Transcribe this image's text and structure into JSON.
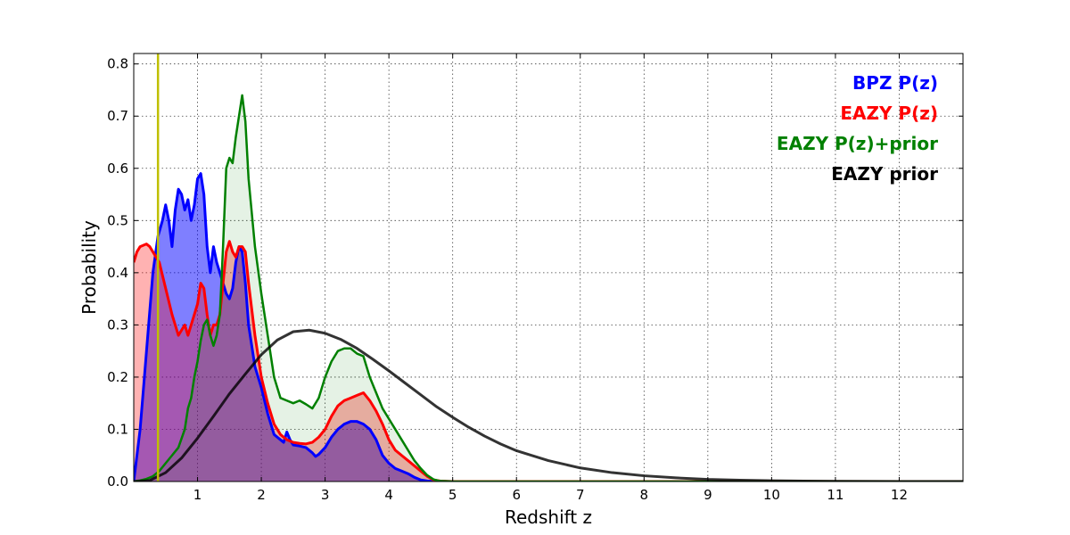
{
  "chart_data": {
    "type": "area",
    "title": "",
    "xlabel": "Redshift z",
    "ylabel": "Probability",
    "xlim": [
      0,
      13
    ],
    "ylim": [
      0,
      0.82
    ],
    "x_ticks": [
      1,
      2,
      3,
      4,
      5,
      6,
      7,
      8,
      9,
      10,
      11,
      12
    ],
    "y_ticks": [
      0.0,
      0.1,
      0.2,
      0.3,
      0.4,
      0.5,
      0.6,
      0.7,
      0.8
    ],
    "y_tick_labels": [
      "0.0",
      "0.1",
      "0.2",
      "0.3",
      "0.4",
      "0.5",
      "0.6",
      "0.7",
      "0.8"
    ],
    "grid": true,
    "legend_position": "top-right",
    "vertical_marker": {
      "x": 0.38,
      "color": "#bfbf00"
    },
    "series": [
      {
        "name": "BPZ P(z)",
        "color": "#0000ff",
        "fill": "#0000ff",
        "fill_opacity": 0.5,
        "line_width": 3,
        "points": [
          [
            0,
            0
          ],
          [
            0.1,
            0.1
          ],
          [
            0.2,
            0.25
          ],
          [
            0.3,
            0.4
          ],
          [
            0.38,
            0.47
          ],
          [
            0.45,
            0.5
          ],
          [
            0.5,
            0.53
          ],
          [
            0.55,
            0.5
          ],
          [
            0.6,
            0.45
          ],
          [
            0.65,
            0.52
          ],
          [
            0.7,
            0.56
          ],
          [
            0.75,
            0.55
          ],
          [
            0.8,
            0.52
          ],
          [
            0.85,
            0.54
          ],
          [
            0.9,
            0.5
          ],
          [
            0.95,
            0.53
          ],
          [
            1.0,
            0.58
          ],
          [
            1.05,
            0.59
          ],
          [
            1.1,
            0.55
          ],
          [
            1.15,
            0.45
          ],
          [
            1.2,
            0.4
          ],
          [
            1.25,
            0.45
          ],
          [
            1.3,
            0.42
          ],
          [
            1.35,
            0.4
          ],
          [
            1.4,
            0.38
          ],
          [
            1.45,
            0.36
          ],
          [
            1.5,
            0.35
          ],
          [
            1.55,
            0.37
          ],
          [
            1.6,
            0.42
          ],
          [
            1.65,
            0.45
          ],
          [
            1.7,
            0.44
          ],
          [
            1.75,
            0.38
          ],
          [
            1.8,
            0.3
          ],
          [
            1.9,
            0.22
          ],
          [
            2.0,
            0.18
          ],
          [
            2.1,
            0.13
          ],
          [
            2.2,
            0.09
          ],
          [
            2.3,
            0.08
          ],
          [
            2.35,
            0.075
          ],
          [
            2.4,
            0.095
          ],
          [
            2.45,
            0.08
          ],
          [
            2.5,
            0.07
          ],
          [
            2.6,
            0.068
          ],
          [
            2.7,
            0.065
          ],
          [
            2.8,
            0.055
          ],
          [
            2.85,
            0.048
          ],
          [
            2.9,
            0.052
          ],
          [
            3.0,
            0.065
          ],
          [
            3.1,
            0.085
          ],
          [
            3.2,
            0.1
          ],
          [
            3.3,
            0.11
          ],
          [
            3.4,
            0.115
          ],
          [
            3.5,
            0.115
          ],
          [
            3.6,
            0.11
          ],
          [
            3.7,
            0.1
          ],
          [
            3.8,
            0.08
          ],
          [
            3.9,
            0.05
          ],
          [
            4.0,
            0.035
          ],
          [
            4.1,
            0.025
          ],
          [
            4.2,
            0.02
          ],
          [
            4.3,
            0.015
          ],
          [
            4.4,
            0.008
          ],
          [
            4.5,
            0.003
          ],
          [
            4.6,
            0.001
          ],
          [
            5.0,
            0
          ],
          [
            13,
            0
          ]
        ]
      },
      {
        "name": "EAZY P(z)",
        "color": "#ff0000",
        "fill": "#ff0000",
        "fill_opacity": 0.3,
        "line_width": 3,
        "points": [
          [
            0,
            0.42
          ],
          [
            0.05,
            0.44
          ],
          [
            0.1,
            0.45
          ],
          [
            0.2,
            0.455
          ],
          [
            0.25,
            0.45
          ],
          [
            0.3,
            0.44
          ],
          [
            0.4,
            0.42
          ],
          [
            0.5,
            0.37
          ],
          [
            0.6,
            0.32
          ],
          [
            0.7,
            0.28
          ],
          [
            0.8,
            0.3
          ],
          [
            0.85,
            0.28
          ],
          [
            0.9,
            0.3
          ],
          [
            1.0,
            0.34
          ],
          [
            1.05,
            0.38
          ],
          [
            1.1,
            0.37
          ],
          [
            1.15,
            0.32
          ],
          [
            1.2,
            0.28
          ],
          [
            1.25,
            0.3
          ],
          [
            1.3,
            0.3
          ],
          [
            1.35,
            0.32
          ],
          [
            1.4,
            0.38
          ],
          [
            1.45,
            0.44
          ],
          [
            1.5,
            0.46
          ],
          [
            1.55,
            0.44
          ],
          [
            1.6,
            0.43
          ],
          [
            1.65,
            0.45
          ],
          [
            1.7,
            0.45
          ],
          [
            1.75,
            0.44
          ],
          [
            1.8,
            0.38
          ],
          [
            1.9,
            0.28
          ],
          [
            2.0,
            0.2
          ],
          [
            2.1,
            0.15
          ],
          [
            2.2,
            0.11
          ],
          [
            2.3,
            0.09
          ],
          [
            2.4,
            0.08
          ],
          [
            2.5,
            0.075
          ],
          [
            2.6,
            0.073
          ],
          [
            2.7,
            0.072
          ],
          [
            2.8,
            0.075
          ],
          [
            2.9,
            0.085
          ],
          [
            3.0,
            0.1
          ],
          [
            3.1,
            0.125
          ],
          [
            3.2,
            0.145
          ],
          [
            3.3,
            0.155
          ],
          [
            3.4,
            0.16
          ],
          [
            3.5,
            0.165
          ],
          [
            3.6,
            0.17
          ],
          [
            3.7,
            0.155
          ],
          [
            3.8,
            0.135
          ],
          [
            3.9,
            0.11
          ],
          [
            4.0,
            0.08
          ],
          [
            4.1,
            0.06
          ],
          [
            4.2,
            0.05
          ],
          [
            4.3,
            0.04
          ],
          [
            4.4,
            0.03
          ],
          [
            4.5,
            0.02
          ],
          [
            4.6,
            0.01
          ],
          [
            4.7,
            0.003
          ],
          [
            4.8,
            0.001
          ],
          [
            5.0,
            0
          ],
          [
            13,
            0
          ]
        ]
      },
      {
        "name": "EAZY P(z)+prior",
        "color": "#008000",
        "fill": "#008000",
        "fill_opacity": 0.1,
        "line_width": 2.5,
        "points": [
          [
            0,
            0
          ],
          [
            0.1,
            0.002
          ],
          [
            0.2,
            0.005
          ],
          [
            0.3,
            0.01
          ],
          [
            0.4,
            0.02
          ],
          [
            0.5,
            0.035
          ],
          [
            0.6,
            0.05
          ],
          [
            0.7,
            0.065
          ],
          [
            0.8,
            0.1
          ],
          [
            0.85,
            0.14
          ],
          [
            0.9,
            0.16
          ],
          [
            0.95,
            0.2
          ],
          [
            1.0,
            0.23
          ],
          [
            1.05,
            0.27
          ],
          [
            1.1,
            0.3
          ],
          [
            1.15,
            0.31
          ],
          [
            1.2,
            0.28
          ],
          [
            1.25,
            0.26
          ],
          [
            1.3,
            0.28
          ],
          [
            1.35,
            0.32
          ],
          [
            1.4,
            0.45
          ],
          [
            1.45,
            0.6
          ],
          [
            1.5,
            0.62
          ],
          [
            1.55,
            0.61
          ],
          [
            1.6,
            0.66
          ],
          [
            1.65,
            0.7
          ],
          [
            1.7,
            0.74
          ],
          [
            1.75,
            0.69
          ],
          [
            1.8,
            0.58
          ],
          [
            1.9,
            0.45
          ],
          [
            2.0,
            0.36
          ],
          [
            2.1,
            0.28
          ],
          [
            2.2,
            0.2
          ],
          [
            2.3,
            0.16
          ],
          [
            2.4,
            0.155
          ],
          [
            2.5,
            0.15
          ],
          [
            2.6,
            0.155
          ],
          [
            2.7,
            0.148
          ],
          [
            2.8,
            0.14
          ],
          [
            2.9,
            0.16
          ],
          [
            3.0,
            0.2
          ],
          [
            3.1,
            0.23
          ],
          [
            3.2,
            0.25
          ],
          [
            3.3,
            0.255
          ],
          [
            3.4,
            0.255
          ],
          [
            3.5,
            0.245
          ],
          [
            3.6,
            0.24
          ],
          [
            3.7,
            0.2
          ],
          [
            3.8,
            0.17
          ],
          [
            3.9,
            0.14
          ],
          [
            4.0,
            0.12
          ],
          [
            4.1,
            0.1
          ],
          [
            4.2,
            0.08
          ],
          [
            4.3,
            0.06
          ],
          [
            4.4,
            0.04
          ],
          [
            4.5,
            0.025
          ],
          [
            4.6,
            0.012
          ],
          [
            4.7,
            0.004
          ],
          [
            4.8,
            0.001
          ],
          [
            5.0,
            0
          ],
          [
            13,
            0
          ]
        ]
      },
      {
        "name": "EAZY prior",
        "color": "#000000",
        "fill": "none",
        "line_width": 3,
        "line_opacity": 0.8,
        "points": [
          [
            0,
            0
          ],
          [
            0.25,
            0.002
          ],
          [
            0.5,
            0.017
          ],
          [
            0.75,
            0.045
          ],
          [
            1.0,
            0.083
          ],
          [
            1.25,
            0.125
          ],
          [
            1.5,
            0.168
          ],
          [
            1.75,
            0.206
          ],
          [
            2.0,
            0.243
          ],
          [
            2.25,
            0.271
          ],
          [
            2.5,
            0.287
          ],
          [
            2.75,
            0.29
          ],
          [
            3.0,
            0.284
          ],
          [
            3.25,
            0.272
          ],
          [
            3.5,
            0.255
          ],
          [
            3.75,
            0.234
          ],
          [
            4.0,
            0.212
          ],
          [
            4.25,
            0.189
          ],
          [
            4.5,
            0.166
          ],
          [
            4.75,
            0.143
          ],
          [
            5.0,
            0.123
          ],
          [
            5.25,
            0.104
          ],
          [
            5.5,
            0.087
          ],
          [
            5.75,
            0.072
          ],
          [
            6.0,
            0.059
          ],
          [
            6.5,
            0.04
          ],
          [
            7.0,
            0.026
          ],
          [
            7.5,
            0.017
          ],
          [
            8.0,
            0.011
          ],
          [
            8.5,
            0.007
          ],
          [
            9.0,
            0.004
          ],
          [
            9.5,
            0.0025
          ],
          [
            10.0,
            0.0015
          ],
          [
            10.5,
            0.0008
          ],
          [
            11.0,
            0.0005
          ],
          [
            11.5,
            0.0002
          ],
          [
            12.0,
            0.0001
          ],
          [
            13.0,
            0
          ]
        ]
      }
    ]
  }
}
